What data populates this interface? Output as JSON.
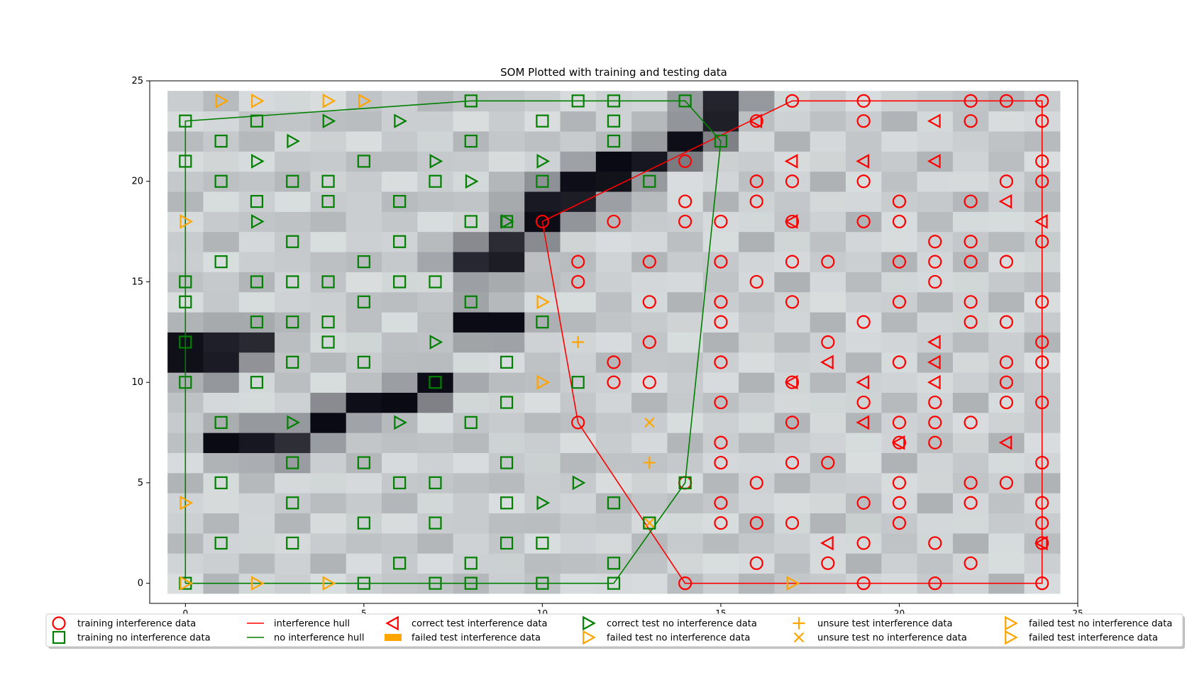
{
  "chart_data": {
    "type": "scatter",
    "title": "SOM Plotted with training and testing data",
    "xlim": [
      -1,
      25
    ],
    "ylim": [
      -1,
      25
    ],
    "x_ticks": [
      0,
      5,
      10,
      15,
      20,
      25
    ],
    "y_ticks": [
      0,
      5,
      10,
      15,
      20,
      25
    ],
    "grid": false,
    "legend_position": "bottom",
    "colors": {
      "interference": "#ff0000",
      "no_interference": "#008000",
      "failed": "#ffa500"
    },
    "background_heatmap": {
      "cols": 25,
      "rows": 25,
      "dark_cells": [
        [
          0,
          12
        ],
        [
          1,
          12
        ],
        [
          1,
          11
        ],
        [
          0,
          11
        ],
        [
          2,
          12
        ],
        [
          1,
          7
        ],
        [
          2,
          7
        ],
        [
          3,
          7
        ],
        [
          4,
          8
        ],
        [
          5,
          9
        ],
        [
          6,
          9
        ],
        [
          7,
          10
        ],
        [
          8,
          13
        ],
        [
          9,
          13
        ],
        [
          8,
          16
        ],
        [
          9,
          16
        ],
        [
          9,
          17
        ],
        [
          10,
          18
        ],
        [
          10,
          19
        ],
        [
          11,
          19
        ],
        [
          11,
          20
        ],
        [
          12,
          20
        ],
        [
          12,
          21
        ],
        [
          13,
          21
        ],
        [
          14,
          22
        ],
        [
          15,
          23
        ],
        [
          15,
          24
        ]
      ]
    },
    "legend": [
      "training interference data",
      "training no interference data",
      "interference hull",
      "no interference hull",
      "correct test interference data",
      "failed test interference data",
      "correct test no interference data",
      "failed test no interference data",
      "unsure test interference data",
      "unsure test no interference data",
      "failed test no interference data",
      "failed test interference data"
    ],
    "series": [
      {
        "name": "training interference data",
        "marker": "circle",
        "color": "#ff0000",
        "points": [
          [
            10,
            18
          ],
          [
            11,
            16
          ],
          [
            11,
            15
          ],
          [
            11,
            8
          ],
          [
            12,
            18
          ],
          [
            12,
            11
          ],
          [
            12,
            10
          ],
          [
            13,
            16
          ],
          [
            13,
            14
          ],
          [
            13,
            12
          ],
          [
            13,
            10
          ],
          [
            14,
            21
          ],
          [
            14,
            19
          ],
          [
            14,
            18
          ],
          [
            14,
            5
          ],
          [
            14,
            0
          ],
          [
            15,
            18
          ],
          [
            15,
            16
          ],
          [
            15,
            14
          ],
          [
            15,
            13
          ],
          [
            15,
            11
          ],
          [
            15,
            9
          ],
          [
            15,
            7
          ],
          [
            15,
            6
          ],
          [
            15,
            4
          ],
          [
            15,
            3
          ],
          [
            16,
            23
          ],
          [
            16,
            20
          ],
          [
            16,
            19
          ],
          [
            16,
            15
          ],
          [
            16,
            5
          ],
          [
            16,
            3
          ],
          [
            16,
            1
          ],
          [
            17,
            24
          ],
          [
            17,
            20
          ],
          [
            17,
            18
          ],
          [
            17,
            16
          ],
          [
            17,
            14
          ],
          [
            17,
            10
          ],
          [
            17,
            8
          ],
          [
            17,
            6
          ],
          [
            17,
            3
          ],
          [
            18,
            16
          ],
          [
            18,
            12
          ],
          [
            18,
            6
          ],
          [
            18,
            1
          ],
          [
            19,
            24
          ],
          [
            19,
            23
          ],
          [
            19,
            20
          ],
          [
            19,
            18
          ],
          [
            19,
            13
          ],
          [
            19,
            9
          ],
          [
            19,
            4
          ],
          [
            19,
            2
          ],
          [
            19,
            0
          ],
          [
            20,
            19
          ],
          [
            20,
            18
          ],
          [
            20,
            16
          ],
          [
            20,
            14
          ],
          [
            20,
            11
          ],
          [
            20,
            8
          ],
          [
            20,
            7
          ],
          [
            20,
            5
          ],
          [
            20,
            4
          ],
          [
            20,
            3
          ],
          [
            21,
            17
          ],
          [
            21,
            16
          ],
          [
            21,
            15
          ],
          [
            21,
            9
          ],
          [
            21,
            8
          ],
          [
            21,
            7
          ],
          [
            21,
            2
          ],
          [
            21,
            0
          ],
          [
            22,
            24
          ],
          [
            22,
            23
          ],
          [
            22,
            19
          ],
          [
            22,
            17
          ],
          [
            22,
            16
          ],
          [
            22,
            14
          ],
          [
            22,
            13
          ],
          [
            22,
            8
          ],
          [
            22,
            5
          ],
          [
            22,
            4
          ],
          [
            22,
            1
          ],
          [
            23,
            24
          ],
          [
            23,
            20
          ],
          [
            23,
            16
          ],
          [
            23,
            13
          ],
          [
            23,
            11
          ],
          [
            23,
            10
          ],
          [
            23,
            9
          ],
          [
            23,
            5
          ],
          [
            24,
            24
          ],
          [
            24,
            23
          ],
          [
            24,
            21
          ],
          [
            24,
            20
          ],
          [
            24,
            17
          ],
          [
            24,
            14
          ],
          [
            24,
            12
          ],
          [
            24,
            11
          ],
          [
            24,
            9
          ],
          [
            24,
            6
          ],
          [
            24,
            4
          ],
          [
            24,
            3
          ],
          [
            24,
            2
          ],
          [
            24,
            0
          ]
        ]
      },
      {
        "name": "training no interference data",
        "marker": "square",
        "color": "#008000",
        "points": [
          [
            0,
            23
          ],
          [
            0,
            21
          ],
          [
            0,
            15
          ],
          [
            0,
            14
          ],
          [
            0,
            12
          ],
          [
            0,
            10
          ],
          [
            0,
            0
          ],
          [
            1,
            22
          ],
          [
            1,
            20
          ],
          [
            1,
            16
          ],
          [
            1,
            8
          ],
          [
            1,
            5
          ],
          [
            1,
            2
          ],
          [
            2,
            23
          ],
          [
            2,
            19
          ],
          [
            2,
            15
          ],
          [
            2,
            13
          ],
          [
            2,
            10
          ],
          [
            3,
            20
          ],
          [
            3,
            17
          ],
          [
            3,
            15
          ],
          [
            3,
            13
          ],
          [
            3,
            11
          ],
          [
            3,
            6
          ],
          [
            3,
            4
          ],
          [
            3,
            2
          ],
          [
            4,
            20
          ],
          [
            4,
            19
          ],
          [
            4,
            15
          ],
          [
            4,
            13
          ],
          [
            4,
            12
          ],
          [
            5,
            21
          ],
          [
            5,
            16
          ],
          [
            5,
            14
          ],
          [
            5,
            11
          ],
          [
            5,
            6
          ],
          [
            5,
            3
          ],
          [
            5,
            0
          ],
          [
            6,
            19
          ],
          [
            6,
            17
          ],
          [
            6,
            15
          ],
          [
            6,
            5
          ],
          [
            6,
            1
          ],
          [
            7,
            20
          ],
          [
            7,
            15
          ],
          [
            7,
            10
          ],
          [
            7,
            5
          ],
          [
            7,
            3
          ],
          [
            7,
            0
          ],
          [
            8,
            24
          ],
          [
            8,
            22
          ],
          [
            8,
            18
          ],
          [
            8,
            14
          ],
          [
            8,
            8
          ],
          [
            8,
            1
          ],
          [
            8,
            0
          ],
          [
            9,
            18
          ],
          [
            9,
            11
          ],
          [
            9,
            9
          ],
          [
            9,
            6
          ],
          [
            9,
            4
          ],
          [
            9,
            2
          ],
          [
            10,
            23
          ],
          [
            10,
            20
          ],
          [
            10,
            13
          ],
          [
            10,
            2
          ],
          [
            10,
            0
          ],
          [
            11,
            24
          ],
          [
            11,
            10
          ],
          [
            12,
            24
          ],
          [
            12,
            23
          ],
          [
            12,
            22
          ],
          [
            12,
            4
          ],
          [
            12,
            1
          ],
          [
            12,
            0
          ],
          [
            13,
            20
          ],
          [
            13,
            3
          ],
          [
            14,
            24
          ],
          [
            14,
            5
          ],
          [
            15,
            22
          ]
        ]
      },
      {
        "name": "interference hull",
        "marker": "line",
        "color": "#ff0000",
        "points": [
          [
            10,
            18
          ],
          [
            17,
            24
          ],
          [
            24,
            24
          ],
          [
            24,
            0
          ],
          [
            14,
            0
          ],
          [
            11,
            8
          ],
          [
            10,
            18
          ]
        ]
      },
      {
        "name": "no interference hull",
        "marker": "line",
        "color": "#008000",
        "points": [
          [
            0,
            0
          ],
          [
            12,
            0
          ],
          [
            14,
            5
          ],
          [
            15,
            22
          ],
          [
            14,
            24
          ],
          [
            8,
            24
          ],
          [
            0,
            23
          ],
          [
            0,
            0
          ]
        ]
      },
      {
        "name": "correct test interference data",
        "marker": "triangle-left",
        "color": "#ff0000",
        "points": [
          [
            16,
            23
          ],
          [
            17,
            21
          ],
          [
            17,
            18
          ],
          [
            17,
            10
          ],
          [
            18,
            11
          ],
          [
            18,
            2
          ],
          [
            19,
            21
          ],
          [
            19,
            10
          ],
          [
            19,
            8
          ],
          [
            20,
            7
          ],
          [
            21,
            23
          ],
          [
            21,
            21
          ],
          [
            21,
            12
          ],
          [
            21,
            11
          ],
          [
            21,
            10
          ],
          [
            23,
            19
          ],
          [
            23,
            7
          ],
          [
            24,
            18
          ],
          [
            24,
            2
          ]
        ]
      },
      {
        "name": "correct test no interference data",
        "marker": "triangle-right",
        "color": "#008000",
        "points": [
          [
            2,
            21
          ],
          [
            2,
            18
          ],
          [
            3,
            22
          ],
          [
            3,
            8
          ],
          [
            4,
            23
          ],
          [
            6,
            23
          ],
          [
            6,
            8
          ],
          [
            7,
            21
          ],
          [
            7,
            12
          ],
          [
            8,
            20
          ],
          [
            9,
            18
          ],
          [
            10,
            21
          ],
          [
            10,
            4
          ],
          [
            11,
            5
          ]
        ]
      },
      {
        "name": "failed test no interference data",
        "marker": "triangle-right",
        "color": "#ffa500",
        "points": [
          [
            1,
            24
          ],
          [
            2,
            24
          ],
          [
            4,
            24
          ],
          [
            5,
            24
          ],
          [
            0,
            18
          ],
          [
            0,
            4
          ],
          [
            0,
            0
          ],
          [
            2,
            0
          ],
          [
            4,
            0
          ],
          [
            10,
            14
          ],
          [
            10,
            10
          ],
          [
            17,
            0
          ]
        ]
      },
      {
        "name": "unsure test interference data",
        "marker": "plus",
        "color": "#ffa500",
        "points": [
          [
            11,
            12
          ],
          [
            13,
            6
          ]
        ]
      },
      {
        "name": "unsure test no interference data",
        "marker": "x",
        "color": "#ffa500",
        "points": [
          [
            13,
            8
          ],
          [
            13,
            3
          ]
        ]
      }
    ]
  }
}
